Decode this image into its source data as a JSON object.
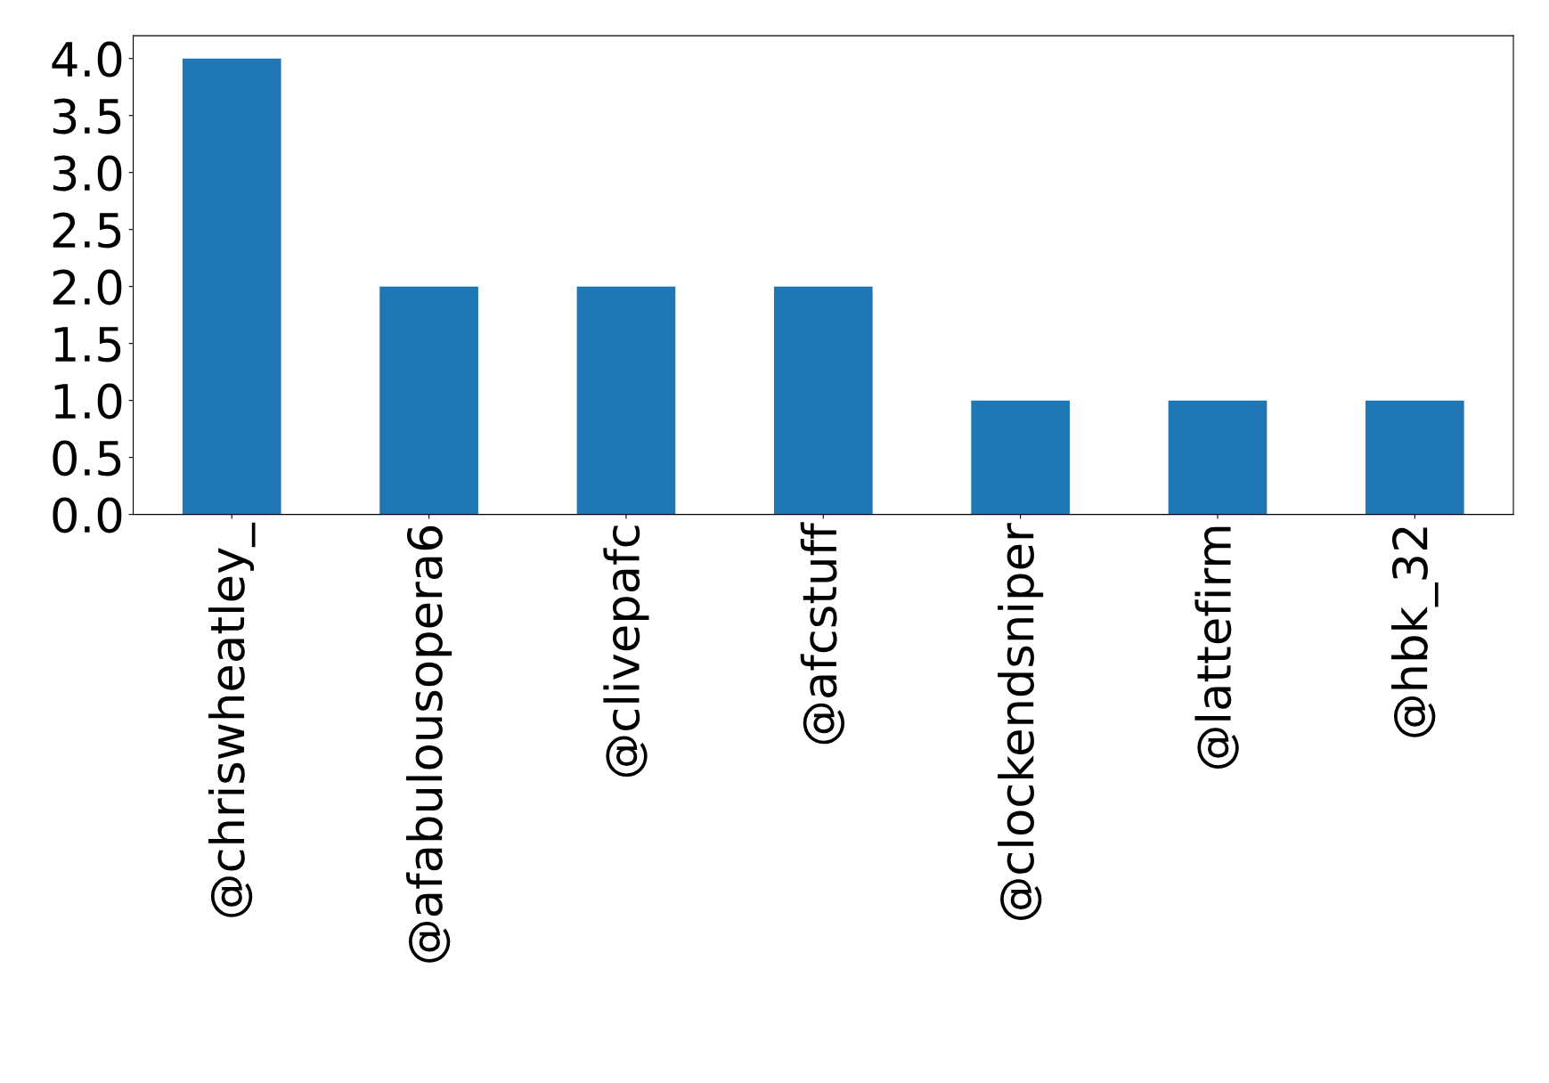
{
  "chart_data": {
    "type": "bar",
    "categories": [
      "@chriswheatley_",
      "@afabulousopera6",
      "@clivepafc",
      "@afcstuff",
      "@clockendsniper",
      "@lattefirm",
      "@hbk_32"
    ],
    "values": [
      4,
      2,
      2,
      2,
      1,
      1,
      1
    ],
    "color": "#1f77b4",
    "ylim": [
      0,
      4.2
    ],
    "yticks": [
      {
        "value": 0,
        "label": "0.0"
      },
      {
        "value": 0.5,
        "label": "0.5"
      },
      {
        "value": 1,
        "label": "1.0"
      },
      {
        "value": 1.5,
        "label": "1.5"
      },
      {
        "value": 2,
        "label": "2.0"
      },
      {
        "value": 2.5,
        "label": "2.5"
      },
      {
        "value": 3,
        "label": "3.0"
      },
      {
        "value": 3.5,
        "label": "3.5"
      },
      {
        "value": 4,
        "label": "4.0"
      }
    ],
    "grid": false,
    "legend": false
  }
}
